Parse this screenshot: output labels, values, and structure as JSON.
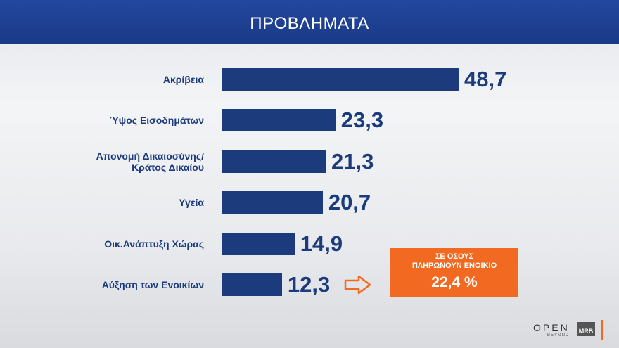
{
  "chart_data": {
    "type": "hbar",
    "title": "ΠΡΟΒΛΗΜΑΤΑ",
    "categories": [
      "Ακρίβεια",
      "Ύψος Εισοδημάτων",
      "Απονομή Δικαιοσύνης/\nΚράτος Δικαίου",
      "Υγεία",
      "Οικ.Ανάπτυξη Χώρας",
      "Αύξηση των Ενοικίων"
    ],
    "values": [
      48.7,
      23.3,
      21.3,
      20.7,
      14.9,
      12.3
    ],
    "value_labels": [
      "48,7",
      "23,3",
      "21,3",
      "20,7",
      "14,9",
      "12,3"
    ],
    "color": "#1b3b7c",
    "annotation": {
      "text": "ΣΕ ΟΣΟΥΣ\nΠΛΗΡΩΝΟΥΝ ΕΝΟΙΚΙΟ",
      "value": 22.4,
      "value_label": "22,4 %",
      "color": "#f26a21"
    }
  },
  "logos": {
    "open": "OPEN",
    "open_sub": "BEYOND",
    "mrb": "MRB"
  }
}
